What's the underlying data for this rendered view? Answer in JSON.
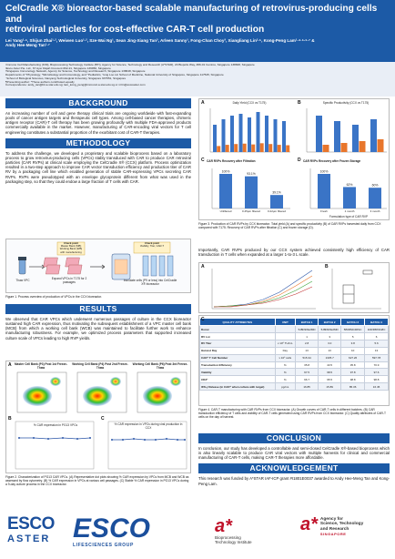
{
  "header": {
    "title_line1": "CelCradle X® bioreactor-based scalable manufacturing of retrovirus-producing cells and",
    "title_line2": "retroviral particles for cost-effective CAR-T cell production",
    "authors_line1": "Lei Yang¹·⁶, Shijun Zhai¹·², Weiwen Luo¹·², Sze-Wai Ng¹, Sean Jing-Xiang Tan³, Arleen Sanny¹, Fong-Chan Choy³, Xiangliang Lin²·⁵, Kong-Peng Lam¹·⁴·⁵·⁶·⁷ &",
    "authors_line2": "Andy Hee-Meng Tan¹·⁷"
  },
  "affiliations": [
    "¹Immuno Cell Manufacturing (ICM), Bioprocessing Technology Institute (BTI), Agency for Science, Technology and Research (A*STAR), 20 Biopolis Way, #06-01 Centros, Singapore 138668, Singapore",
    "²Esco Aster Pte. Ltd., 67 Ayer Rajah Crescent #02-21, Singapore 139950, Singapore",
    "³Singapore Immunology Network, Agency for Science, Technology and Research, Singapore 138648, Singapore",
    "Departments of ⁴Physiology, ⁵Microbiology and Immunology, and ⁶Pediatrics, Yong Loo Lin School of Medicine, National University of Singapore, Singapore 117545, Singapore",
    "⁷School of Biological Sciences, Nanyang Technological University, Singapore 637551, Singapore",
    "¶Presenting author: *These authors contributed equally",
    "Correspondence: andy_tan@bti.a-star.edu.sg; lam_kong_peng@immunol.a-star.edu.sg or xl.lin@escoaster.com"
  ],
  "sections": {
    "background": "BACKGROUND",
    "methodology": "METHODOLOGY",
    "results": "RESULTS",
    "conclusion": "CONCLUSION",
    "acknowledgement": "ACKNOWLEDGEMENT"
  },
  "background_text": "An increasing number of cell and gene therapy clinical trials are ongoing worldwide with fast-expanding pools of cancer antigen targets and therapeutic cell types. Among cell-based cancer therapies, chimeric antigen receptor (CAR)-T cell therapy has been growing profoundly with multiple FDA-approved products commercially available in the market. However, manufacturing of CAR-encoding viral vectors for T cell engineering constitutes a substantial proportion of the exorbitant cost of CAR-T therapies.",
  "methodology_text": "To address the challenge, we developed a proprietary and scalable bioprocess based on a laboratory process to grow retrovirus-producing cells (VPCs) stably transduced with CAR to produce CAR retroviral particles (CAR RVPs) at clinical scale employing the CelCradle X® (CCX) platform. Process optimization resulted in a two-step approach to improve CAR vector transduction efficiency and production titer of CAR RV by a packaging cell line which enabled generation of stable CAR-expressing VPCs secreting CAR RVPs. RVPs were pseudotyped with an envelope glycoprotein different from what was used in the packaging step, so that they could endow a large fraction of T cells with CAR.",
  "method_figure": {
    "thaw": "Thaw VPC",
    "expand": "Expand VPCs in T175 for 2 passages",
    "inoculate": "Inoculate cells (P9 or less) into CelCradle X® bioreactor",
    "checkpoint1_title": "Check point",
    "checkpoint1_text": "Master Bank (MB) Working Bank (WB) with manufacturing",
    "checkpoint2_title": "Check point",
    "checkpoint2_text": "Viability, Titer, CAR-T"
  },
  "method_caption": "Figure 1. Process overview of production of VPCs in the CCX bioreactor.",
  "results_text": "We observed that CAR VPCs which underwent numerous passages of culture in the CCX bioreactor sustained high CAR expression, thus motivating the subsequent establishment of a VPC master cell bank (MCB) from which a working cell bank (WCB) was maintained to facilitate further work to enhance manufacturing robustness. For example, we optimized process parameters that supported increased culture scale of VPCs leading to high RVP yields.",
  "fig2": {
    "panel_a": "A",
    "panel_b": "B",
    "panel_c": "C",
    "flow_titles": [
      "Master Cell Bank (P3) Post 1st Freeze-Thaw",
      "Working Cell Bank (P4) Post 2nd Freeze-Thaw",
      "Working Cell Bank (P6) Post 3rd Freeze-Thaw"
    ],
    "b_title": "% CAR expression in PG13 VPCs",
    "c_title": "% CAR expression in VPCs during viral production in CCX",
    "caption": "Figure 2. Characterization of PG13 CAR VPCs. (A) Representative dot plots showing % CAR expression by VPCs from MCB and WCB as assessed by flow cytometry. (B) % CAR expression in VPCs at various cell passages. (C) Stable % CAR expression in PG13 VPCs during a 9-day culture process in the CCX bioreactor."
  },
  "fig3": {
    "panel_a": "A",
    "panel_b": "B",
    "panel_c": "C",
    "panel_d": "D",
    "a_title": "Daily Yield (CCX vs T175)",
    "b_title": "Specific Productivity (CCX vs T175)",
    "c_title": "CAR RVPs Recovery after Filtration",
    "d_title": "CAR RVPs Recovery after Frozen Storage",
    "c_categories": [
      "Unfiltered",
      "0.45µm filtered",
      "0.22µm filtered"
    ],
    "c_values": [
      100,
      93,
      39
    ],
    "c_value_labels": [
      "100%",
      "93.1%",
      "39.1%"
    ],
    "d_categories": [
      "Fresh",
      "1 month",
      "3 month"
    ],
    "d_values": [
      100,
      62,
      60
    ],
    "d_value_labels": [
      "100%",
      "62%",
      "60%"
    ],
    "d_xlabel": "Formulation type of CAR RVP",
    "caption": "Figure 3. Production of CAR RVPs by CCX bioreactor. Total yield (A) and specific productivity (B) of CAR RVPs harvested daily from CCX compared with T175. Recovery of CAR RVPs after filtration (C) and frozen storage (D)."
  },
  "results2_text": "Importantly, CAR RVPs produced by our CCX system achieved consistently high efficiency of CAR transduction in T cells when expanded at a larger 1-to-3 L scale.",
  "fig4": {
    "panel_a": "A",
    "panel_b": "B",
    "panel_c": "C",
    "panel_d": "D",
    "caption": "Figure 4. CAR-T manufacturing with CAR RVPs from CCX bioreactor. (A) Growth curves of CAR-T cells in different batches. (B) CAR transduction efficiency of T cells and viability of CAR-T cells generated using CAR RVPs from CCX bioreactor. (C) Quality attributes of CAR-T cells on the day of harvest."
  },
  "table": {
    "headers": [
      "QUALITY ATTRIBUTES",
      "UNIT",
      "BATCH 1",
      "BATCH 2",
      "BATCH 3",
      "BATCH 4"
    ],
    "rows": [
      [
        "Donor",
        "",
        "5J8D9XE2MD",
        "5J8D9XE2MD",
        "5BX8ND4RSC",
        "1DRR8X3G8C"
      ],
      [
        "RV Lot",
        "",
        "1",
        "3",
        "5",
        "6"
      ],
      [
        "RV Titer",
        "x 10⁶ TU/mL",
        "2.8",
        "3.0",
        "3.8",
        "5.6"
      ],
      [
        "Harvest Day",
        "Day",
        "13",
        "13",
        "10",
        "13"
      ],
      [
        "CAR⁺ T Cell Number",
        "x 10⁶ cells",
        "515.34",
        "1335.7",
        "627.26",
        "597.78"
      ],
      [
        "Transduction Efficiency",
        "%",
        "35.8",
        "43.5",
        "35.8",
        "70.9"
      ],
      [
        "Viability",
        "%",
        "97.5",
        "98.5",
        "97.8",
        "97.6"
      ],
      [
        "CD3⁺",
        "%",
        "96.7",
        "95.5",
        "98.8",
        "98.8"
      ],
      [
        "IFN-γ Release (in CAR⁺ when culture with target)",
        "pg/mL",
        "16.85",
        "15.89",
        "85.36",
        "16.45"
      ]
    ]
  },
  "conclusion_text": "In conclusion, our study has developed a controllable and semi-closed CelCradle X®-based bioprocess which is also linearly scalable to produce CAR viral vectors with multiple harvests for clinical and commercial manufacturing of CAR-T cells, making CAR-T therapies more affordable.",
  "ack_text": "This research was funded by A*STAR IAF-ICP grant #I1801E0037 awarded to Andy Hee-Meng Tan and Kong-Peng Lam.",
  "logos": {
    "esco_aster_1": "ESCO",
    "esco_aster_2": "ASTER",
    "esco_life": "ESCO",
    "esco_life_sub": "LIFESCIENCES GROUP",
    "bti_1": "Bioprocessing",
    "bti_2": "Technology Institute",
    "astar_1": "Agency for",
    "astar_2": "Science, Technology",
    "astar_3": "and Research",
    "astar_4": "SINGAPORE"
  },
  "colors": {
    "brand_blue": "#1c5aa6",
    "bar_blue": "#3a74c6",
    "bar_orange": "#e8762c"
  }
}
